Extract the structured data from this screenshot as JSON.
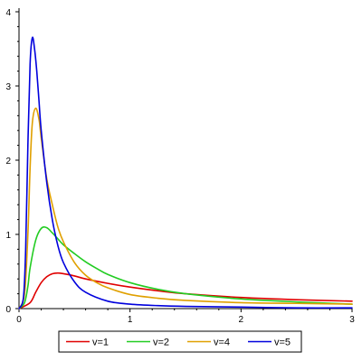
{
  "chart_data": {
    "type": "line",
    "title": "",
    "xlabel": "",
    "ylabel": "",
    "xlim": [
      0,
      3
    ],
    "ylim": [
      0,
      4
    ],
    "x_ticks": [
      "0",
      "1",
      "2",
      "3"
    ],
    "y_ticks": [
      "0",
      "1",
      "2",
      "3",
      "4"
    ],
    "grid": false,
    "legend_position": "bottom",
    "series": [
      {
        "name": "v=1",
        "color": "#e00000",
        "x": [
          0.0,
          0.1,
          0.15,
          0.2,
          0.25,
          0.3,
          0.35,
          0.4,
          0.5,
          0.6,
          0.8,
          1.0,
          1.25,
          1.5,
          2.0,
          2.5,
          3.0
        ],
        "y": [
          0.0,
          0.08,
          0.22,
          0.35,
          0.43,
          0.47,
          0.48,
          0.47,
          0.44,
          0.4,
          0.34,
          0.29,
          0.24,
          0.2,
          0.15,
          0.12,
          0.1
        ]
      },
      {
        "name": "v=2",
        "color": "#22cc22",
        "x": [
          0.0,
          0.05,
          0.08,
          0.1,
          0.15,
          0.2,
          0.25,
          0.3,
          0.35,
          0.4,
          0.5,
          0.6,
          0.7,
          0.8,
          1.0,
          1.25,
          1.5,
          2.0,
          2.5,
          3.0
        ],
        "y": [
          0.0,
          0.08,
          0.3,
          0.55,
          0.92,
          1.08,
          1.09,
          1.02,
          0.94,
          0.86,
          0.74,
          0.63,
          0.54,
          0.46,
          0.35,
          0.26,
          0.2,
          0.13,
          0.09,
          0.06
        ]
      },
      {
        "name": "v=4",
        "color": "#e0a000",
        "x": [
          0.0,
          0.05,
          0.08,
          0.1,
          0.12,
          0.15,
          0.18,
          0.2,
          0.25,
          0.3,
          0.35,
          0.4,
          0.5,
          0.6,
          0.7,
          0.8,
          1.0,
          1.25,
          1.5,
          2.0,
          2.5,
          3.0
        ],
        "y": [
          0.0,
          0.2,
          1.0,
          1.9,
          2.5,
          2.7,
          2.55,
          2.3,
          1.75,
          1.4,
          1.1,
          0.9,
          0.62,
          0.45,
          0.35,
          0.28,
          0.19,
          0.14,
          0.11,
          0.08,
          0.07,
          0.06
        ]
      },
      {
        "name": "v=5",
        "color": "#0000dd",
        "x": [
          0.0,
          0.04,
          0.06,
          0.08,
          0.1,
          0.12,
          0.14,
          0.16,
          0.18,
          0.2,
          0.25,
          0.3,
          0.35,
          0.4,
          0.5,
          0.6,
          0.8,
          1.0,
          1.25,
          1.5,
          2.0,
          2.5,
          3.0
        ],
        "y": [
          0.0,
          0.15,
          0.8,
          2.2,
          3.3,
          3.65,
          3.5,
          3.2,
          2.8,
          2.4,
          1.7,
          1.2,
          0.85,
          0.62,
          0.36,
          0.22,
          0.1,
          0.06,
          0.04,
          0.03,
          0.02,
          0.01,
          0.01
        ]
      }
    ]
  }
}
